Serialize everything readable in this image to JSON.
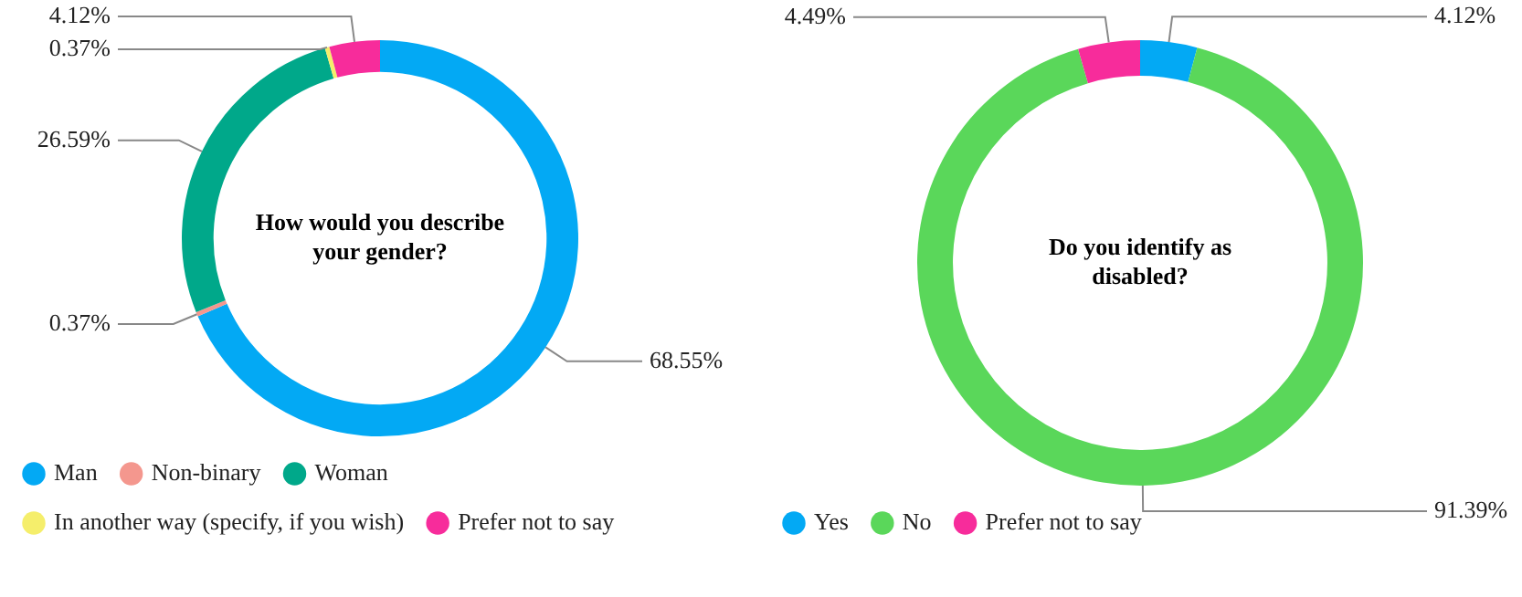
{
  "chart_data": [
    {
      "type": "donut",
      "title": "How would you describe your gender?",
      "categories": [
        "Man",
        "Non-binary",
        "Woman",
        "In another way (specify, if you wish)",
        "Prefer not to say"
      ],
      "values": [
        68.55,
        0.37,
        26.59,
        0.37,
        4.12
      ],
      "value_labels": [
        "68.55%",
        "0.37%",
        "26.59%",
        "0.37%",
        "4.12%"
      ],
      "colors": [
        "#03a9f4",
        "#f4978e",
        "#00a88a",
        "#f5ee6b",
        "#f72c9b"
      ],
      "legend": "bottom"
    },
    {
      "type": "donut",
      "title": "Do you identify as disabled?",
      "categories": [
        "Yes",
        "No",
        "Prefer not to say"
      ],
      "values": [
        4.12,
        91.39,
        4.49
      ],
      "value_labels": [
        "4.12%",
        "91.39%",
        "4.49%"
      ],
      "colors": [
        "#03a9f4",
        "#5ad75a",
        "#f72c9b"
      ],
      "legend": "bottom"
    }
  ]
}
